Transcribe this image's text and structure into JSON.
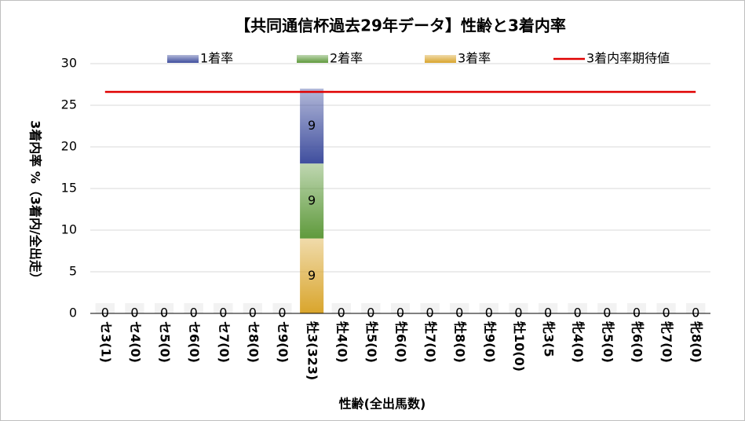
{
  "chart_data": {
    "type": "bar",
    "stacked": true,
    "title": "【共同通信杯過去29年データ】性齢と3着内率",
    "x_label": "性齢(全出馬数)",
    "y_label": "3着内率 %（3着内/全出走）",
    "categories": [
      "セ3(1)",
      "セ4(0)",
      "セ5(0)",
      "セ6(0)",
      "セ7(0)",
      "セ8(0)",
      "セ9(0)",
      "牡3(323)",
      "牡4(0)",
      "牡5(0)",
      "牡6(0)",
      "牡7(0)",
      "牡8(0)",
      "牡9(0)",
      "牡10(0)",
      "牝3(5",
      "牝4(0)",
      "牝5(0)",
      "牝6(0)",
      "牝7(0)",
      "牝8(0)"
    ],
    "series": [
      {
        "name": "1着率",
        "type": "bar",
        "color": "#3f4e9e",
        "values": [
          0,
          0,
          0,
          0,
          0,
          0,
          0,
          9,
          0,
          0,
          0,
          0,
          0,
          0,
          0,
          0,
          0,
          0,
          0,
          0,
          0
        ]
      },
      {
        "name": "2着率",
        "type": "bar",
        "color": "#5f9a3c",
        "values": [
          0,
          0,
          0,
          0,
          0,
          0,
          0,
          9,
          0,
          0,
          0,
          0,
          0,
          0,
          0,
          0,
          0,
          0,
          0,
          0,
          0
        ]
      },
      {
        "name": "3着率",
        "type": "bar",
        "color": "#d9a52c",
        "values": [
          0,
          0,
          0,
          0,
          0,
          0,
          0,
          9,
          0,
          0,
          0,
          0,
          0,
          0,
          0,
          0,
          0,
          0,
          0,
          0,
          0
        ]
      },
      {
        "name": "3着内率期待値",
        "type": "line",
        "color": "#e00000",
        "values": [
          26.6,
          26.6,
          26.6,
          26.6,
          26.6,
          26.6,
          26.6,
          26.6,
          26.6,
          26.6,
          26.6,
          26.6,
          26.6,
          26.6,
          26.6,
          26.6,
          26.6,
          26.6,
          26.6,
          26.6,
          26.6
        ]
      }
    ],
    "ylim": [
      0,
      30
    ],
    "yticks": [
      0,
      5,
      10,
      15,
      20,
      25,
      30
    ],
    "grid": true
  }
}
